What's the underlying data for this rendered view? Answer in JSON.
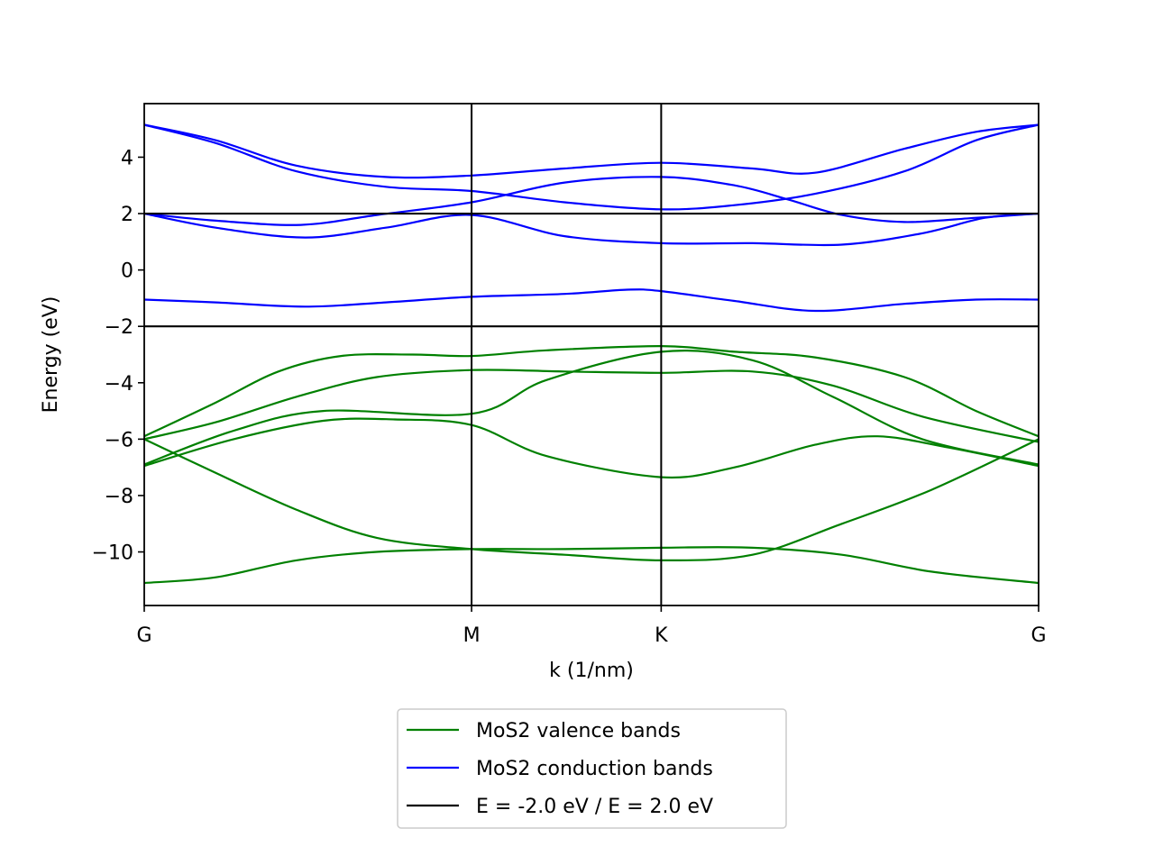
{
  "chart_data": {
    "type": "line",
    "xlabel": "k (1/nm)",
    "ylabel": "Energy (eV)",
    "ylim": [
      -11.9,
      5.9
    ],
    "x_ticks": [
      {
        "label": "G",
        "x": 0
      },
      {
        "label": "M",
        "x": 0.366
      },
      {
        "label": "K",
        "x": 0.578
      },
      {
        "label": "G",
        "x": 1
      }
    ],
    "y_ticks": [
      4,
      2,
      0,
      -2,
      -4,
      -6,
      -8,
      -10
    ],
    "y_tick_labels": [
      "4",
      "2",
      "0",
      "−2",
      "−4",
      "−6",
      "−8",
      "−10"
    ],
    "grid": false,
    "legend_position": "bottom-center, below plot",
    "series": [
      {
        "name": "MoS2 valence bands",
        "color": "#008000",
        "curves": [
          [
            [
              0,
              -5.9
            ],
            [
              0.08,
              -4.7
            ],
            [
              0.15,
              -3.6
            ],
            [
              0.22,
              -3.05
            ],
            [
              0.3,
              -3.0
            ],
            [
              0.366,
              -3.05
            ],
            [
              0.45,
              -2.85
            ],
            [
              0.578,
              -2.7
            ],
            [
              0.66,
              -2.9
            ],
            [
              0.75,
              -3.1
            ],
            [
              0.85,
              -3.8
            ],
            [
              0.93,
              -5.0
            ],
            [
              1,
              -5.9
            ]
          ],
          [
            [
              0,
              -6.0
            ],
            [
              0.08,
              -5.4
            ],
            [
              0.17,
              -4.5
            ],
            [
              0.26,
              -3.8
            ],
            [
              0.366,
              -3.55
            ],
            [
              0.47,
              -3.6
            ],
            [
              0.578,
              -3.65
            ],
            [
              0.68,
              -3.6
            ],
            [
              0.77,
              -4.1
            ],
            [
              0.87,
              -5.2
            ],
            [
              1,
              -6.1
            ]
          ],
          [
            [
              0,
              -6.9
            ],
            [
              0.1,
              -5.7
            ],
            [
              0.2,
              -5.0
            ],
            [
              0.366,
              -5.1
            ],
            [
              0.45,
              -3.9
            ],
            [
              0.578,
              -2.9
            ],
            [
              0.68,
              -3.2
            ],
            [
              0.77,
              -4.5
            ],
            [
              0.87,
              -6.0
            ],
            [
              1,
              -6.9
            ]
          ],
          [
            [
              0,
              -6.95
            ],
            [
              0.1,
              -6.0
            ],
            [
              0.2,
              -5.35
            ],
            [
              0.28,
              -5.3
            ],
            [
              0.366,
              -5.5
            ],
            [
              0.45,
              -6.6
            ],
            [
              0.578,
              -7.35
            ],
            [
              0.66,
              -7.0
            ],
            [
              0.75,
              -6.2
            ],
            [
              0.82,
              -5.9
            ],
            [
              0.9,
              -6.3
            ],
            [
              1,
              -6.95
            ]
          ],
          [
            [
              0,
              -6.0
            ],
            [
              0.08,
              -7.2
            ],
            [
              0.17,
              -8.5
            ],
            [
              0.26,
              -9.5
            ],
            [
              0.366,
              -9.9
            ],
            [
              0.47,
              -10.1
            ],
            [
              0.578,
              -10.3
            ],
            [
              0.68,
              -10.1
            ],
            [
              0.78,
              -9.0
            ],
            [
              0.88,
              -7.8
            ],
            [
              1,
              -6.0
            ]
          ],
          [
            [
              0,
              -11.1
            ],
            [
              0.08,
              -10.9
            ],
            [
              0.17,
              -10.3
            ],
            [
              0.26,
              -10.0
            ],
            [
              0.366,
              -9.9
            ],
            [
              0.47,
              -9.9
            ],
            [
              0.578,
              -9.85
            ],
            [
              0.68,
              -9.85
            ],
            [
              0.78,
              -10.1
            ],
            [
              0.88,
              -10.7
            ],
            [
              1,
              -11.1
            ]
          ]
        ]
      },
      {
        "name": "MoS2 conduction bands",
        "color": "#0000ff",
        "curves": [
          [
            [
              0,
              5.15
            ],
            [
              0.08,
              4.6
            ],
            [
              0.17,
              3.7
            ],
            [
              0.27,
              3.3
            ],
            [
              0.366,
              3.35
            ],
            [
              0.47,
              3.6
            ],
            [
              0.578,
              3.8
            ],
            [
              0.68,
              3.6
            ],
            [
              0.75,
              3.45
            ],
            [
              0.85,
              4.3
            ],
            [
              0.93,
              4.9
            ],
            [
              1,
              5.15
            ]
          ],
          [
            [
              0,
              5.15
            ],
            [
              0.08,
              4.5
            ],
            [
              0.17,
              3.5
            ],
            [
              0.27,
              2.95
            ],
            [
              0.366,
              2.8
            ],
            [
              0.47,
              2.4
            ],
            [
              0.578,
              2.15
            ],
            [
              0.66,
              2.3
            ],
            [
              0.75,
              2.7
            ],
            [
              0.85,
              3.5
            ],
            [
              0.93,
              4.6
            ],
            [
              1,
              5.15
            ]
          ],
          [
            [
              0,
              2.0
            ],
            [
              0.08,
              1.75
            ],
            [
              0.175,
              1.6
            ],
            [
              0.26,
              1.95
            ],
            [
              0.366,
              2.4
            ],
            [
              0.47,
              3.1
            ],
            [
              0.578,
              3.3
            ],
            [
              0.66,
              3.0
            ],
            [
              0.72,
              2.5
            ],
            [
              0.78,
              1.95
            ],
            [
              0.85,
              1.7
            ],
            [
              0.93,
              1.85
            ],
            [
              1,
              2.0
            ]
          ],
          [
            [
              0,
              2.0
            ],
            [
              0.08,
              1.5
            ],
            [
              0.18,
              1.15
            ],
            [
              0.27,
              1.5
            ],
            [
              0.366,
              1.95
            ],
            [
              0.47,
              1.2
            ],
            [
              0.578,
              0.95
            ],
            [
              0.68,
              0.95
            ],
            [
              0.78,
              0.9
            ],
            [
              0.87,
              1.3
            ],
            [
              0.94,
              1.85
            ],
            [
              1,
              2.0
            ]
          ],
          [
            [
              0,
              -1.05
            ],
            [
              0.08,
              -1.15
            ],
            [
              0.18,
              -1.3
            ],
            [
              0.27,
              -1.15
            ],
            [
              0.366,
              -0.95
            ],
            [
              0.47,
              -0.85
            ],
            [
              0.54,
              -0.7
            ],
            [
              0.578,
              -0.75
            ],
            [
              0.66,
              -1.1
            ],
            [
              0.75,
              -1.45
            ],
            [
              0.85,
              -1.2
            ],
            [
              0.93,
              -1.05
            ],
            [
              1,
              -1.05
            ]
          ]
        ]
      },
      {
        "name": "E = -2.0 eV / E = 2.0 eV",
        "color": "#000000",
        "hlines": [
          -2.0,
          2.0
        ]
      }
    ]
  }
}
